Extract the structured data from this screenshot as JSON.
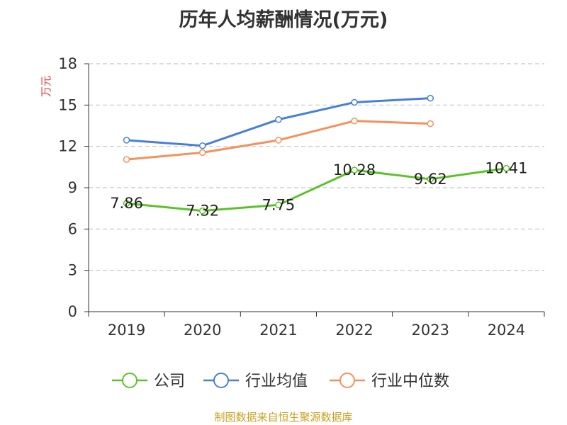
{
  "title": "历年人均薪酬情况(万元)",
  "source_note": "制图数据来自恒生聚源数据库",
  "chart_data": {
    "type": "line",
    "title": "历年人均薪酬情况(万元)",
    "ylabel": "万元",
    "categories": [
      "2019",
      "2020",
      "2021",
      "2022",
      "2023",
      "2024"
    ],
    "ylim": [
      0,
      18
    ],
    "yticks": [
      0,
      3,
      6,
      9,
      12,
      15,
      18
    ],
    "grid": true,
    "legend_position": "bottom",
    "series": [
      {
        "name": "公司",
        "color": "#5cc22a",
        "values": [
          7.86,
          7.32,
          7.75,
          10.28,
          9.62,
          10.41
        ],
        "labels": [
          "7.86",
          "7.32",
          "7.75",
          "10.28",
          "9.62",
          "10.41"
        ]
      },
      {
        "name": "行业均值",
        "color": "#4a7fd6",
        "values": [
          12.45,
          12.05,
          13.95,
          15.2,
          15.5,
          null
        ]
      },
      {
        "name": "行业中位数",
        "color": "#f3915d",
        "values": [
          11.05,
          11.55,
          12.45,
          13.85,
          13.65,
          null
        ]
      }
    ]
  }
}
